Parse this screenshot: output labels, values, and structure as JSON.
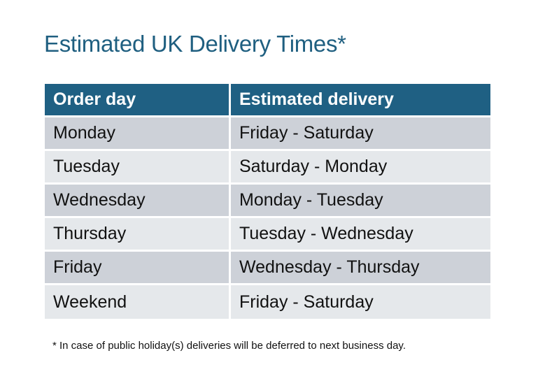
{
  "title": "Estimated UK Delivery Times*",
  "table": {
    "headers": [
      "Order day",
      "Estimated delivery"
    ],
    "rows": [
      [
        "Monday",
        "Friday - Saturday"
      ],
      [
        "Tuesday",
        "Saturday - Monday"
      ],
      [
        "Wednesday",
        "Monday - Tuesday"
      ],
      [
        "Thursday",
        "Tuesday - Wednesday"
      ],
      [
        "Friday",
        "Wednesday - Thursday"
      ],
      [
        "Weekend",
        "Friday - Saturday"
      ]
    ]
  },
  "footnote": "* In case of public holiday(s) deliveries will be deferred to next business day.",
  "colors": {
    "header": "#1f6083",
    "title": "#1f5f80",
    "row_odd": "#cdd1d8",
    "row_even": "#e5e8eb"
  }
}
